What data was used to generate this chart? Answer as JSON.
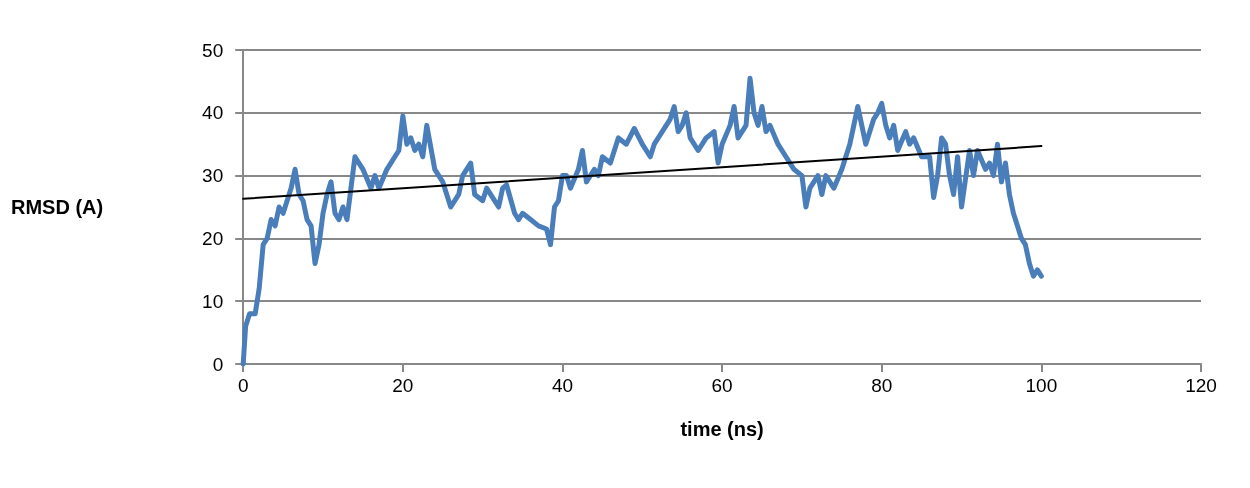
{
  "chart_data": {
    "type": "line",
    "ylabel": "RMSD (A)",
    "xlabel": "time (ns)",
    "xlim": [
      0,
      120
    ],
    "xticks": [
      0,
      20,
      40,
      60,
      80,
      100,
      120
    ],
    "ylim": [
      0,
      50
    ],
    "yticks": [
      0,
      10,
      20,
      30,
      40,
      50
    ],
    "grid": "y",
    "marker": "none",
    "line_style": "solid",
    "series": [
      {
        "color": "#4a7ebb",
        "x": [
          0,
          0.3,
          0.8,
          1.5,
          2,
          2.5,
          3,
          3.5,
          4,
          4.5,
          5,
          6,
          6.5,
          7,
          7.5,
          8,
          8.5,
          9,
          9.5,
          10,
          10.5,
          11,
          11.5,
          12,
          12.5,
          13,
          13.5,
          14,
          14.5,
          15,
          16,
          16.5,
          17,
          18,
          18.5,
          19,
          19.5,
          20,
          20.5,
          21,
          21.5,
          22,
          22.5,
          23,
          24,
          25,
          25.5,
          26,
          27,
          27.5,
          28,
          28.5,
          29,
          30,
          30.5,
          31,
          32,
          32.5,
          33,
          34,
          34.5,
          35,
          36,
          37,
          38,
          38.5,
          39,
          39.5,
          40,
          40.5,
          41,
          42,
          42.5,
          43,
          44,
          44.5,
          45,
          46,
          46.5,
          47,
          48,
          49,
          50,
          51,
          51.5,
          52,
          53,
          53.5,
          54,
          54.5,
          55,
          55.5,
          56,
          57,
          58,
          59,
          59.5,
          60,
          61,
          61.5,
          62,
          62.5,
          63,
          63.5,
          64,
          64.5,
          65,
          65.5,
          66,
          67,
          68,
          69,
          70,
          70.5,
          71,
          72,
          72.5,
          73,
          74,
          75,
          75.5,
          76,
          76.5,
          77,
          77.5,
          78,
          79,
          79.5,
          80,
          80.5,
          81,
          81.5,
          82,
          83,
          83.5,
          84,
          85,
          86,
          86.5,
          87,
          87.5,
          88,
          88.5,
          89,
          89.5,
          90,
          91,
          91.5,
          92,
          93,
          93.5,
          94,
          94.5,
          95,
          95.5,
          96,
          96.5,
          97,
          97.5,
          98,
          98.5,
          99,
          99.5,
          100
        ],
        "values": [
          0,
          6,
          8,
          8,
          12,
          19,
          20,
          23,
          22,
          25,
          24,
          28,
          31,
          27,
          26,
          23,
          22,
          16,
          19,
          24,
          27,
          29,
          24,
          23,
          25,
          23,
          28,
          33,
          32,
          31,
          28,
          30,
          28,
          31,
          32,
          33,
          34,
          39.5,
          35,
          36,
          34,
          35,
          33,
          38,
          31,
          29,
          27,
          25,
          27,
          30,
          31,
          32,
          27,
          26,
          28,
          27,
          25,
          28,
          28.5,
          24,
          23,
          24,
          23,
          22,
          21.5,
          19,
          25,
          26,
          30,
          30,
          28,
          31,
          34,
          29,
          31,
          30,
          33,
          32,
          34,
          36,
          35,
          37.5,
          35,
          33,
          35,
          36,
          38,
          39,
          41,
          37,
          38,
          40,
          36,
          34,
          36,
          37,
          32,
          35,
          38,
          41,
          36,
          37,
          38,
          45.5,
          40,
          38,
          41,
          37,
          38,
          35,
          33,
          31,
          30,
          25,
          28,
          30,
          27,
          30,
          28,
          31,
          33,
          35,
          38,
          41,
          38,
          35,
          39,
          40,
          41.5,
          38,
          36,
          38,
          34,
          37,
          35,
          36,
          33,
          33,
          26.5,
          30,
          36,
          35,
          30,
          27,
          33,
          25,
          34,
          30,
          34,
          31,
          32,
          30,
          35,
          29,
          32,
          27,
          24,
          22,
          20,
          19,
          16,
          14,
          15,
          14
        ]
      },
      {
        "color": "#000000",
        "x": [
          0,
          100
        ],
        "values": [
          26.3,
          34.7
        ]
      }
    ]
  }
}
